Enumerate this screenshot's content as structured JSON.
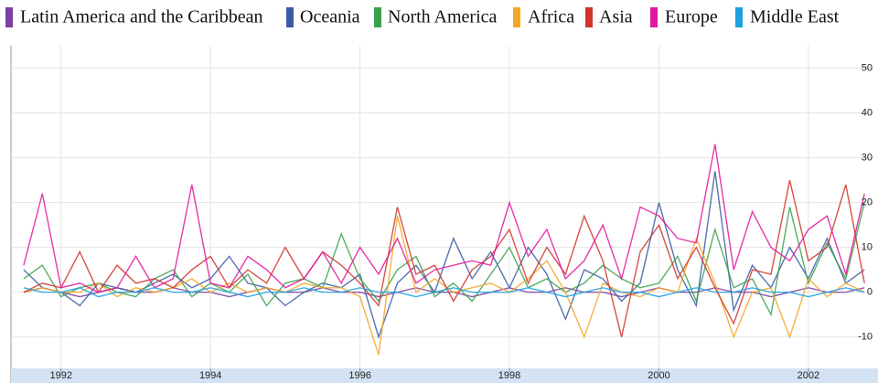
{
  "chart_data": {
    "type": "line",
    "x": [
      1991.5,
      1991.75,
      1992,
      1992.25,
      1992.5,
      1992.75,
      1993,
      1993.25,
      1993.5,
      1993.75,
      1994,
      1994.25,
      1994.5,
      1994.75,
      1995,
      1995.25,
      1995.5,
      1995.75,
      1996,
      1996.25,
      1996.5,
      1996.75,
      1997,
      1997.25,
      1997.5,
      1997.75,
      1998,
      1998.25,
      1998.5,
      1998.75,
      1999,
      1999.25,
      1999.5,
      1999.75,
      2000,
      2000.25,
      2000.5,
      2000.75,
      2001,
      2001.25,
      2001.5,
      2001.75,
      2002,
      2002.25,
      2002.5,
      2002.75
    ],
    "series": [
      {
        "name": "Latin America and the Caribbean",
        "color": "#7b3fa0",
        "values": [
          0,
          1,
          0,
          -1,
          0,
          1,
          0,
          0,
          1,
          0,
          0,
          -1,
          0,
          1,
          0,
          0,
          1,
          0,
          0,
          -1,
          0,
          1,
          0,
          0,
          -1,
          0,
          1,
          0,
          0,
          1,
          0,
          0,
          -1,
          0,
          1,
          0,
          0,
          1,
          0,
          0,
          -1,
          0,
          1,
          0,
          0,
          1
        ]
      },
      {
        "name": "Oceania",
        "color": "#3b5ba5",
        "values": [
          5,
          1,
          0,
          -3,
          2,
          1,
          0,
          2,
          4,
          1,
          3,
          8,
          2,
          1,
          -3,
          0,
          2,
          1,
          4,
          -10,
          2,
          6,
          0,
          12,
          3,
          9,
          1,
          10,
          4,
          -6,
          5,
          3,
          -2,
          2,
          20,
          5,
          -3,
          27,
          -4,
          6,
          1,
          10,
          3,
          12,
          2,
          5
        ]
      },
      {
        "name": "North America",
        "color": "#3aa14a",
        "values": [
          3,
          6,
          -1,
          1,
          2,
          0,
          -1,
          3,
          5,
          -1,
          2,
          0,
          4,
          -3,
          2,
          3,
          1,
          13,
          3,
          -2,
          5,
          8,
          -1,
          2,
          -2,
          4,
          10,
          1,
          3,
          0,
          2,
          6,
          3,
          1,
          2,
          8,
          -2,
          14,
          1,
          3,
          -5,
          19,
          2,
          11,
          3,
          20
        ]
      },
      {
        "name": "Africa",
        "color": "#f5a623",
        "values": [
          0,
          1,
          0,
          0,
          2,
          -1,
          1,
          0,
          1,
          3,
          0,
          2,
          0,
          1,
          0,
          2,
          1,
          1,
          -1,
          -14,
          17,
          0,
          3,
          0,
          1,
          2,
          0,
          3,
          7,
          0,
          -10,
          2,
          0,
          -1,
          1,
          0,
          12,
          2,
          -10,
          0,
          1,
          -10,
          3,
          -1,
          2,
          0
        ]
      },
      {
        "name": "Asia",
        "color": "#d0342c",
        "values": [
          0,
          2,
          1,
          9,
          0,
          6,
          2,
          3,
          1,
          5,
          8,
          1,
          5,
          2,
          10,
          3,
          9,
          6,
          2,
          -3,
          19,
          4,
          6,
          -2,
          5,
          8,
          14,
          2,
          10,
          4,
          17,
          7,
          -10,
          9,
          15,
          3,
          10,
          1,
          -7,
          5,
          4,
          25,
          7,
          10,
          24,
          2
        ]
      },
      {
        "name": "Europe",
        "color": "#e0189c",
        "values": [
          6,
          22,
          1,
          2,
          0,
          1,
          8,
          1,
          3,
          24,
          2,
          1,
          8,
          5,
          1,
          3,
          9,
          2,
          10,
          4,
          12,
          2,
          5,
          6,
          7,
          6,
          20,
          8,
          14,
          3,
          7,
          15,
          3,
          19,
          17,
          12,
          11,
          33,
          5,
          18,
          10,
          7,
          14,
          17,
          4,
          22
        ]
      },
      {
        "name": "Middle East",
        "color": "#1ba1e2",
        "values": [
          1,
          0,
          0,
          1,
          -1,
          0,
          0,
          1,
          0,
          0,
          1,
          0,
          -1,
          0,
          0,
          1,
          0,
          0,
          1,
          0,
          0,
          -1,
          0,
          1,
          0,
          0,
          0,
          1,
          0,
          -1,
          0,
          1,
          0,
          0,
          -1,
          0,
          1,
          0,
          0,
          1,
          0,
          0,
          -1,
          0,
          1,
          0
        ]
      }
    ],
    "xlim": [
      1991.33,
      2002.87
    ],
    "xticks": [
      1992,
      1994,
      1996,
      1998,
      2000,
      2002
    ],
    "ylim": [
      -17,
      55
    ],
    "yticks": [
      -10,
      0,
      10,
      20,
      30,
      40,
      50
    ],
    "grid": true,
    "legend": "top"
  }
}
